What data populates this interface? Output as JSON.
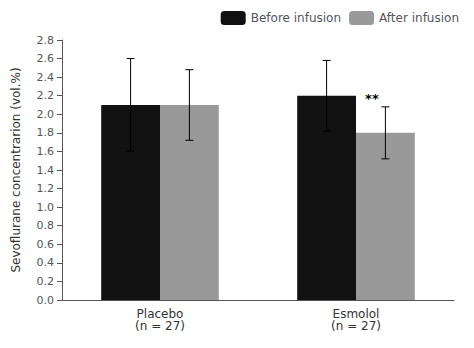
{
  "chart_data": {
    "type": "bar",
    "categories": [
      "Placebo\n(n = 27)",
      "Esmolol\n(n = 27)"
    ],
    "series": [
      {
        "name": "Before infusion",
        "color": "#111111",
        "values": [
          2.1,
          2.2
        ],
        "errors": [
          0.5,
          0.38
        ]
      },
      {
        "name": "After infusion",
        "color": "#999999",
        "values": [
          2.1,
          1.8
        ],
        "errors": [
          0.38,
          0.28
        ]
      }
    ],
    "ylabel": "Sevoflurane concentrarion (vol.%)",
    "ylim": [
      0.0,
      2.8
    ],
    "yticks": [
      {
        "value": 0.0,
        "label": "0.0"
      },
      0.2,
      0.4,
      0.6,
      0.8,
      {
        "value": 1.0,
        "label": "1.0"
      },
      1.2,
      1.4,
      1.6,
      1.8,
      {
        "value": 2.0,
        "label": "2.0"
      },
      2.2,
      2.4,
      2.6,
      2.8
    ],
    "annotations": [
      {
        "text": "**",
        "category": "Esmolol\n(n = 27)",
        "series": "After infusion"
      }
    ],
    "legend": "upper right",
    "grid": false
  }
}
